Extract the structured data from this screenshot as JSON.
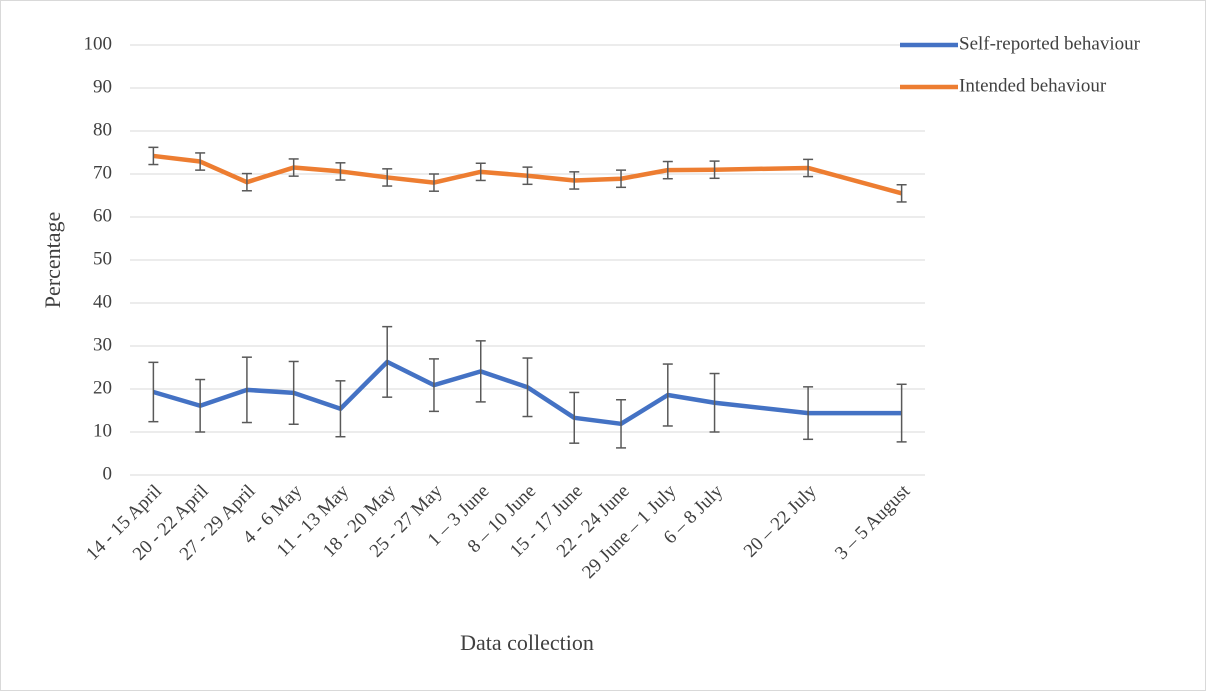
{
  "chart_data": {
    "type": "line",
    "x_label": "Data collection",
    "y_label": "Percentage",
    "categories": [
      "14 - 15 April",
      "20 - 22 April",
      "27 - 29 April",
      "4 - 6 May",
      "11 - 13 May",
      "18 - 20 May",
      "25 - 27 May",
      "1 – 3 June",
      "8 – 10 June",
      "15 - 17 June",
      "22 - 24 June",
      "29 June – 1 July",
      "6 – 8 July",
      null,
      "20 – 22 July",
      null,
      "3 – 5 August"
    ],
    "series": [
      {
        "name": "Self-reported behaviour",
        "color": "#4472c4",
        "values": [
          19.3,
          16.1,
          19.8,
          19.1,
          15.4,
          26.3,
          20.9,
          24.1,
          20.4,
          13.3,
          11.9,
          18.6,
          16.8,
          null,
          14.4,
          null,
          14.4
        ],
        "errors": [
          6.9,
          6.1,
          7.6,
          7.3,
          6.5,
          8.2,
          6.1,
          7.1,
          6.8,
          5.9,
          5.6,
          7.2,
          6.8,
          null,
          6.1,
          null,
          6.7
        ]
      },
      {
        "name": "Intended behaviour",
        "color": "#ed7d31",
        "values": [
          74.2,
          72.9,
          68.1,
          71.5,
          70.6,
          69.2,
          68.0,
          70.5,
          69.6,
          68.5,
          68.9,
          70.9,
          71.0,
          null,
          71.4,
          null,
          65.5
        ],
        "errors": [
          2.0,
          2.0,
          2.0,
          2.0,
          2.0,
          2.0,
          2.0,
          2.0,
          2.0,
          2.0,
          2.0,
          2.0,
          2.0,
          null,
          2.0,
          null,
          2.0
        ]
      }
    ],
    "ylim": [
      0,
      100
    ],
    "yticks": [
      0,
      10,
      20,
      30,
      40,
      50,
      60,
      70,
      80,
      90,
      100
    ],
    "grid": true,
    "connect_gaps": true,
    "legend": "top-right",
    "error_bar_color": "#595959"
  }
}
